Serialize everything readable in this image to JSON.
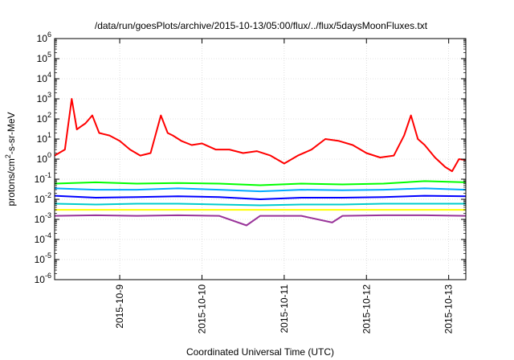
{
  "chart_data": {
    "type": "line",
    "title": "/data/run/goesPlots/archive/2015-10-13/05:00/flux/../flux/5daysMoonFluxes.txt",
    "xlabel": "Coordinated Universal Time (UTC)",
    "ylabel": "protons/cm²-s-sr-MeV",
    "yscale": "log",
    "ylim_exponents": [
      -6,
      6
    ],
    "xlim": [
      "2015-10-08T05:00",
      "2015-10-13T05:00"
    ],
    "x_ticks": [
      "2015-10-9",
      "2015-10-10",
      "2015-10-11",
      "2015-10-12",
      "2015-10-13"
    ],
    "y_ticks": [
      {
        "base": "10",
        "exp": "6"
      },
      {
        "base": "10",
        "exp": "5"
      },
      {
        "base": "10",
        "exp": "4"
      },
      {
        "base": "10",
        "exp": "3"
      },
      {
        "base": "10",
        "exp": "2"
      },
      {
        "base": "10",
        "exp": "1"
      },
      {
        "base": "10",
        "exp": "0"
      },
      {
        "base": "10",
        "exp": "-1"
      },
      {
        "base": "10",
        "exp": "-2"
      },
      {
        "base": "10",
        "exp": "-3"
      },
      {
        "base": "10",
        "exp": "-4"
      },
      {
        "base": "10",
        "exp": "-5"
      },
      {
        "base": "10",
        "exp": "-6"
      }
    ],
    "grid": true,
    "series": [
      {
        "color": "#ff0000",
        "x": [
          "2015-10-08T05:00",
          "2015-10-08T08:00",
          "2015-10-08T10:00",
          "2015-10-08T11:30",
          "2015-10-08T12:30",
          "2015-10-08T14:00",
          "2015-10-08T16:00",
          "2015-10-08T18:00",
          "2015-10-08T21:00",
          "2015-10-09T00:00",
          "2015-10-09T03:00",
          "2015-10-09T06:00",
          "2015-10-09T09:00",
          "2015-10-09T12:00",
          "2015-10-09T14:00",
          "2015-10-09T15:30",
          "2015-10-09T18:00",
          "2015-10-09T21:00",
          "2015-10-10T00:00",
          "2015-10-10T04:00",
          "2015-10-10T08:00",
          "2015-10-10T12:00",
          "2015-10-10T16:00",
          "2015-10-10T20:00",
          "2015-10-11T00:00",
          "2015-10-11T04:00",
          "2015-10-11T08:00",
          "2015-10-11T12:00",
          "2015-10-11T16:00",
          "2015-10-11T20:00",
          "2015-10-12T00:00",
          "2015-10-12T04:00",
          "2015-10-12T08:00",
          "2015-10-12T11:00",
          "2015-10-12T13:00",
          "2015-10-12T15:00",
          "2015-10-12T17:00",
          "2015-10-12T20:00",
          "2015-10-12T23:00",
          "2015-10-13T01:00",
          "2015-10-13T03:00",
          "2015-10-13T05:00"
        ],
        "y": [
          1.5,
          3,
          1000,
          30,
          40,
          60,
          150,
          20,
          15,
          8,
          3,
          1.5,
          2,
          150,
          20,
          15,
          8,
          5,
          6,
          3,
          3,
          2,
          2.5,
          1.5,
          0.6,
          1.5,
          3,
          10,
          8,
          5,
          2,
          1.2,
          1.5,
          15,
          150,
          10,
          5,
          1.2,
          0.4,
          0.25,
          1,
          0.9
        ]
      },
      {
        "color": "#00ff00",
        "x": [
          "2015-10-08T05:00",
          "2015-10-08T17:00",
          "2015-10-09T05:00",
          "2015-10-09T17:00",
          "2015-10-10T05:00",
          "2015-10-10T17:00",
          "2015-10-11T05:00",
          "2015-10-11T17:00",
          "2015-10-12T05:00",
          "2015-10-12T17:00",
          "2015-10-13T05:00"
        ],
        "y": [
          0.06,
          0.07,
          0.06,
          0.065,
          0.06,
          0.05,
          0.06,
          0.055,
          0.06,
          0.08,
          0.07
        ]
      },
      {
        "color": "#00aaff",
        "x": [
          "2015-10-08T05:00",
          "2015-10-08T17:00",
          "2015-10-09T05:00",
          "2015-10-09T17:00",
          "2015-10-10T05:00",
          "2015-10-10T17:00",
          "2015-10-11T05:00",
          "2015-10-11T17:00",
          "2015-10-12T05:00",
          "2015-10-12T17:00",
          "2015-10-13T05:00"
        ],
        "y": [
          0.035,
          0.03,
          0.03,
          0.035,
          0.03,
          0.025,
          0.03,
          0.028,
          0.03,
          0.035,
          0.03
        ]
      },
      {
        "color": "#0000ff",
        "x": [
          "2015-10-08T05:00",
          "2015-10-08T17:00",
          "2015-10-09T05:00",
          "2015-10-09T17:00",
          "2015-10-10T05:00",
          "2015-10-10T17:00",
          "2015-10-11T05:00",
          "2015-10-11T17:00",
          "2015-10-12T05:00",
          "2015-10-12T17:00",
          "2015-10-13T05:00"
        ],
        "y": [
          0.015,
          0.012,
          0.013,
          0.014,
          0.013,
          0.01,
          0.012,
          0.012,
          0.013,
          0.015,
          0.014
        ]
      },
      {
        "color": "#00cccc",
        "x": [
          "2015-10-08T05:00",
          "2015-10-08T17:00",
          "2015-10-09T05:00",
          "2015-10-09T17:00",
          "2015-10-10T05:00",
          "2015-10-10T17:00",
          "2015-10-11T05:00",
          "2015-10-11T17:00",
          "2015-10-12T05:00",
          "2015-10-12T17:00",
          "2015-10-13T05:00"
        ],
        "y": [
          0.006,
          0.0055,
          0.006,
          0.006,
          0.0055,
          0.005,
          0.0055,
          0.0055,
          0.006,
          0.006,
          0.006
        ]
      },
      {
        "color": "#ffff00",
        "x": [
          "2015-10-08T05:00",
          "2015-10-08T17:00",
          "2015-10-09T05:00",
          "2015-10-09T17:00",
          "2015-10-10T05:00",
          "2015-10-10T17:00",
          "2015-10-11T05:00",
          "2015-10-11T17:00",
          "2015-10-12T05:00",
          "2015-10-12T17:00",
          "2015-10-13T05:00"
        ],
        "y": [
          0.003,
          0.003,
          0.003,
          0.003,
          0.003,
          0.003,
          0.003,
          0.003,
          0.003,
          0.003,
          0.003
        ]
      },
      {
        "color": "#993399",
        "x": [
          "2015-10-08T05:00",
          "2015-10-08T17:00",
          "2015-10-09T05:00",
          "2015-10-09T17:00",
          "2015-10-10T05:00",
          "2015-10-10T13:00",
          "2015-10-10T17:00",
          "2015-10-11T05:00",
          "2015-10-11T14:00",
          "2015-10-11T17:00",
          "2015-10-12T05:00",
          "2015-10-12T17:00",
          "2015-10-13T05:00"
        ],
        "y": [
          0.0015,
          0.0016,
          0.0015,
          0.0016,
          0.0015,
          0.0005,
          0.0015,
          0.0015,
          0.0007,
          0.0015,
          0.0016,
          0.0016,
          0.0015
        ]
      }
    ]
  }
}
